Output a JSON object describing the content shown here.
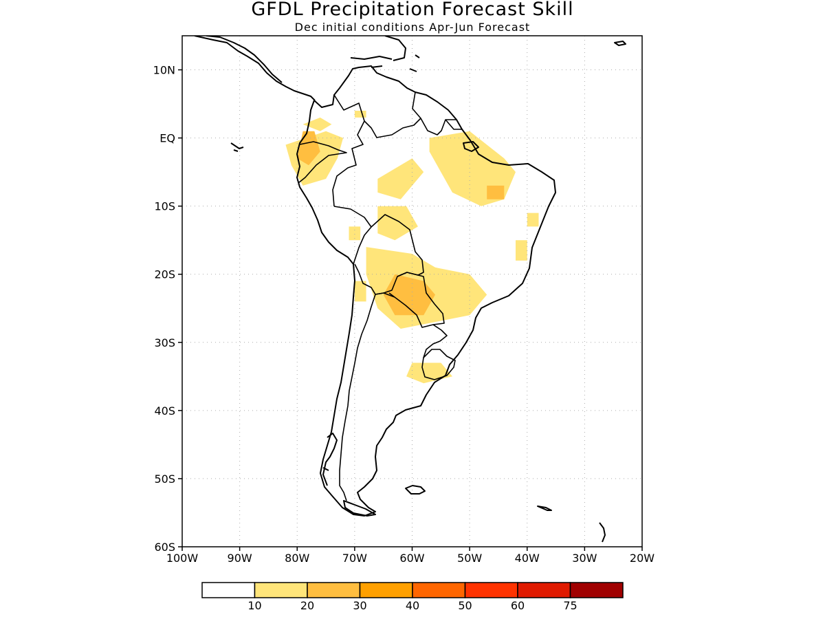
{
  "title": "GFDL Precipitation Forecast Skill",
  "subtitle": "Dec initial conditions  Apr-Jun Forecast",
  "map": {
    "lon_range": [
      -100,
      -20
    ],
    "lat_range": [
      -60,
      15
    ],
    "lon_ticks": [
      {
        "value": -100,
        "label": "100W"
      },
      {
        "value": -90,
        "label": "90W"
      },
      {
        "value": -80,
        "label": "80W"
      },
      {
        "value": -70,
        "label": "70W"
      },
      {
        "value": -60,
        "label": "60W"
      },
      {
        "value": -50,
        "label": "50W"
      },
      {
        "value": -40,
        "label": "40W"
      },
      {
        "value": -30,
        "label": "30W"
      },
      {
        "value": -20,
        "label": "20W"
      }
    ],
    "lat_ticks": [
      {
        "value": 10,
        "label": "10N"
      },
      {
        "value": 0,
        "label": "EQ"
      },
      {
        "value": -10,
        "label": "10S"
      },
      {
        "value": -20,
        "label": "20S"
      },
      {
        "value": -30,
        "label": "30S"
      },
      {
        "value": -40,
        "label": "40S"
      },
      {
        "value": -50,
        "label": "50S"
      },
      {
        "value": -60,
        "label": "60S"
      }
    ],
    "grid": true
  },
  "legend": {
    "colors": [
      "#ffffff",
      "#ffe57a",
      "#ffbe40",
      "#ffa000",
      "#ff6600",
      "#ff3300",
      "#e01a00",
      "#a00000"
    ],
    "labels": [
      "10",
      "20",
      "30",
      "40",
      "50",
      "60",
      "75"
    ]
  },
  "skill_regions": [
    {
      "level": 1,
      "points": [
        [
          -82,
          -1
        ],
        [
          -75,
          1
        ],
        [
          -72,
          0
        ],
        [
          -73,
          -3
        ],
        [
          -75,
          -6
        ],
        [
          -79,
          -7
        ],
        [
          -81,
          -4
        ]
      ]
    },
    {
      "level": 2,
      "points": [
        [
          -79,
          1
        ],
        [
          -77,
          1
        ],
        [
          -76,
          -2
        ],
        [
          -78,
          -4
        ],
        [
          -80,
          -3
        ]
      ]
    },
    {
      "level": 1,
      "points": [
        [
          -79,
          2
        ],
        [
          -76,
          3
        ],
        [
          -74,
          2
        ],
        [
          -76,
          1
        ]
      ]
    },
    {
      "level": 1,
      "points": [
        [
          -70,
          4
        ],
        [
          -68,
          4
        ],
        [
          -68,
          3
        ],
        [
          -70,
          3
        ]
      ]
    },
    {
      "level": 1,
      "points": [
        [
          -66,
          -6
        ],
        [
          -60,
          -3
        ],
        [
          -58,
          -5
        ],
        [
          -62,
          -9
        ],
        [
          -66,
          -8
        ]
      ]
    },
    {
      "level": 1,
      "points": [
        [
          -57,
          0
        ],
        [
          -50,
          1
        ],
        [
          -44,
          -3
        ],
        [
          -42,
          -5
        ],
        [
          -44,
          -9
        ],
        [
          -48,
          -10
        ],
        [
          -53,
          -8
        ],
        [
          -55,
          -5
        ],
        [
          -57,
          -2
        ]
      ]
    },
    {
      "level": 2,
      "points": [
        [
          -47,
          -7
        ],
        [
          -44,
          -7
        ],
        [
          -44,
          -9
        ],
        [
          -47,
          -9
        ]
      ]
    },
    {
      "level": 1,
      "points": [
        [
          -40,
          -11
        ],
        [
          -38,
          -11
        ],
        [
          -38,
          -13
        ],
        [
          -40,
          -13
        ]
      ]
    },
    {
      "level": 1,
      "points": [
        [
          -66,
          -10
        ],
        [
          -61,
          -10
        ],
        [
          -59,
          -13
        ],
        [
          -63,
          -15
        ],
        [
          -66,
          -14
        ]
      ]
    },
    {
      "level": 1,
      "points": [
        [
          -42,
          -15
        ],
        [
          -40,
          -15
        ],
        [
          -40,
          -18
        ],
        [
          -42,
          -18
        ]
      ]
    },
    {
      "level": 1,
      "points": [
        [
          -68,
          -16
        ],
        [
          -60,
          -17
        ],
        [
          -56,
          -19
        ],
        [
          -50,
          -20
        ],
        [
          -47,
          -23
        ],
        [
          -50,
          -26
        ],
        [
          -56,
          -27
        ],
        [
          -62,
          -28
        ],
        [
          -66,
          -25
        ],
        [
          -68,
          -20
        ]
      ]
    },
    {
      "level": 2,
      "points": [
        [
          -63,
          -20
        ],
        [
          -58,
          -21
        ],
        [
          -56,
          -23
        ],
        [
          -58,
          -26
        ],
        [
          -63,
          -26
        ],
        [
          -65,
          -23
        ]
      ]
    },
    {
      "level": 1,
      "points": [
        [
          -70,
          -21
        ],
        [
          -68,
          -21
        ],
        [
          -68,
          -24
        ],
        [
          -70,
          -24
        ]
      ]
    },
    {
      "level": 1,
      "points": [
        [
          -60,
          -33
        ],
        [
          -55,
          -33
        ],
        [
          -53,
          -35
        ],
        [
          -58,
          -36
        ],
        [
          -61,
          -35
        ]
      ]
    },
    {
      "level": 1,
      "points": [
        [
          -71,
          -13
        ],
        [
          -69,
          -13
        ],
        [
          -69,
          -15
        ],
        [
          -71,
          -15
        ]
      ]
    }
  ]
}
